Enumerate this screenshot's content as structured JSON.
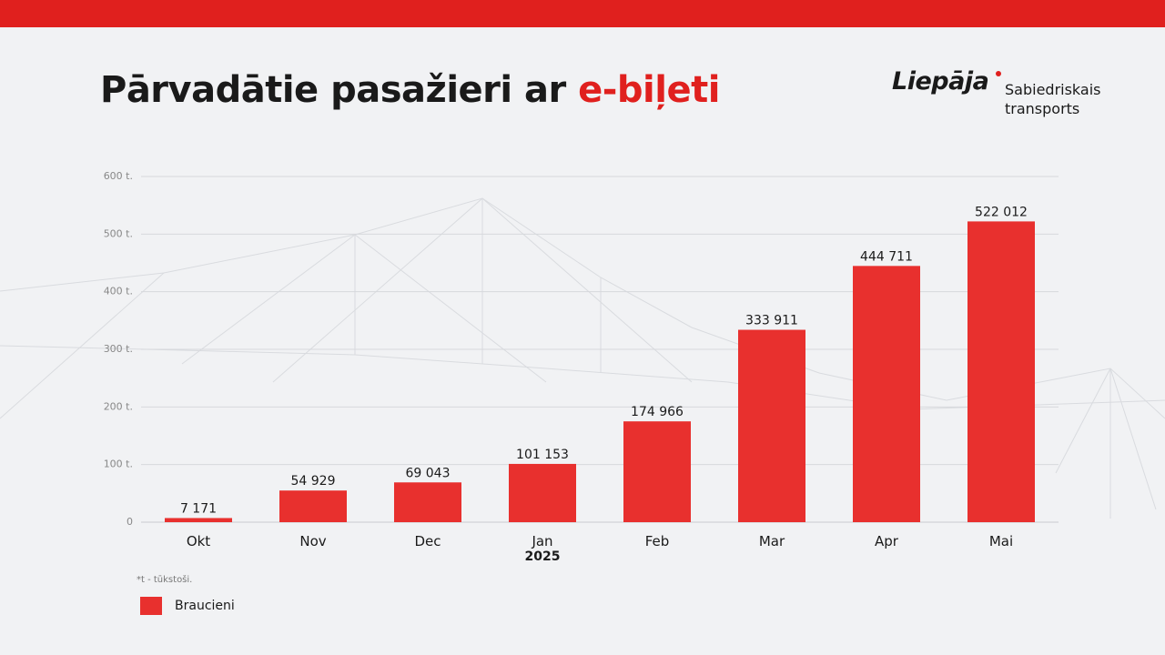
{
  "header": {
    "title_main": "Pārvadātie pasažieri ar ",
    "title_accent": "e-biļeti"
  },
  "logo": {
    "wordmark": "Liepāja",
    "line1": "Sabiedriskais",
    "line2": "transports"
  },
  "colors": {
    "brand_red": "#e0201e",
    "bar": "#e8302e",
    "background": "#f1f2f4"
  },
  "footnote": "*t - tūkstoši.",
  "chart_data": {
    "type": "bar",
    "categories": [
      "Okt",
      "Nov",
      "Dec",
      "Jan",
      "Feb",
      "Mar",
      "Apr",
      "Mai"
    ],
    "year_label": {
      "category": "Jan",
      "text": "2025"
    },
    "series": [
      {
        "name": "Braucieni",
        "values": [
          7171,
          54929,
          69043,
          101153,
          174966,
          333911,
          444711,
          522012
        ],
        "labels": [
          "7 171",
          "54 929",
          "69 043",
          "101 153",
          "174 966",
          "333 911",
          "444 711",
          "522 012"
        ]
      }
    ],
    "ylim": [
      0,
      600000
    ],
    "yticks": [
      0,
      100000,
      200000,
      300000,
      400000,
      500000,
      600000
    ],
    "ytick_labels": [
      "0",
      "100 t.",
      "200 t.",
      "300 t.",
      "400 t.",
      "500 t.",
      "600 t."
    ],
    "grid": true,
    "legend": "bottom-left"
  }
}
